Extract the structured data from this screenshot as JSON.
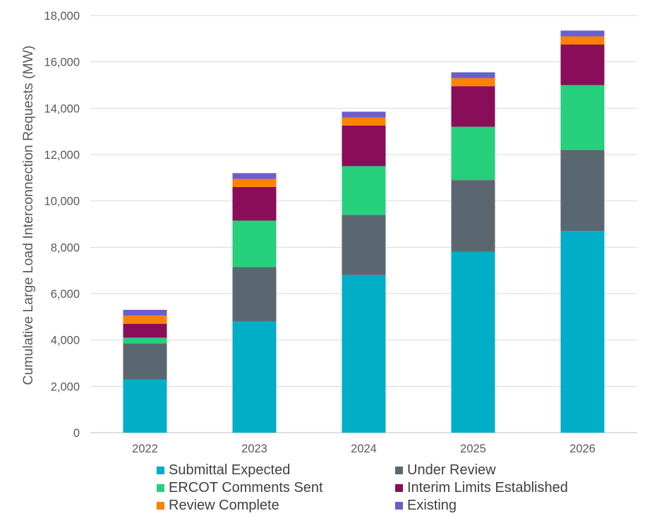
{
  "chart_data": {
    "type": "bar",
    "stacked": true,
    "title": "",
    "xlabel": "",
    "ylabel": "Cumulative Large Load Interconnection Requests (MW)",
    "ylim": [
      0,
      18000
    ],
    "yticks": [
      0,
      2000,
      4000,
      6000,
      8000,
      10000,
      12000,
      14000,
      16000,
      18000
    ],
    "ytick_labels": [
      "0",
      "2,000",
      "4,000",
      "6,000",
      "8,000",
      "10,000",
      "12,000",
      "14,000",
      "16,000",
      "18,000"
    ],
    "grid": true,
    "legend_position": "bottom",
    "categories": [
      "2022",
      "2023",
      "2024",
      "2025",
      "2026"
    ],
    "series": [
      {
        "name": "Submittal Expected",
        "color": "#00AEC7",
        "values": [
          2300,
          4800,
          6800,
          7800,
          8700
        ]
      },
      {
        "name": "Under Review",
        "color": "#5B6770",
        "values": [
          1550,
          2350,
          2600,
          3100,
          3500
        ]
      },
      {
        "name": "ERCOT Comments Sent",
        "color": "#26D07C",
        "values": [
          250,
          2000,
          2100,
          2300,
          2800
        ]
      },
      {
        "name": "Interim Limits Established",
        "color": "#8A0D5A",
        "values": [
          600,
          1450,
          1750,
          1750,
          1750
        ]
      },
      {
        "name": "Review Complete",
        "color": "#FF8200",
        "values": [
          350,
          350,
          350,
          350,
          350
        ]
      },
      {
        "name": "Existing",
        "color": "#6D5ED0",
        "values": [
          250,
          250,
          250,
          250,
          250
        ]
      }
    ]
  }
}
